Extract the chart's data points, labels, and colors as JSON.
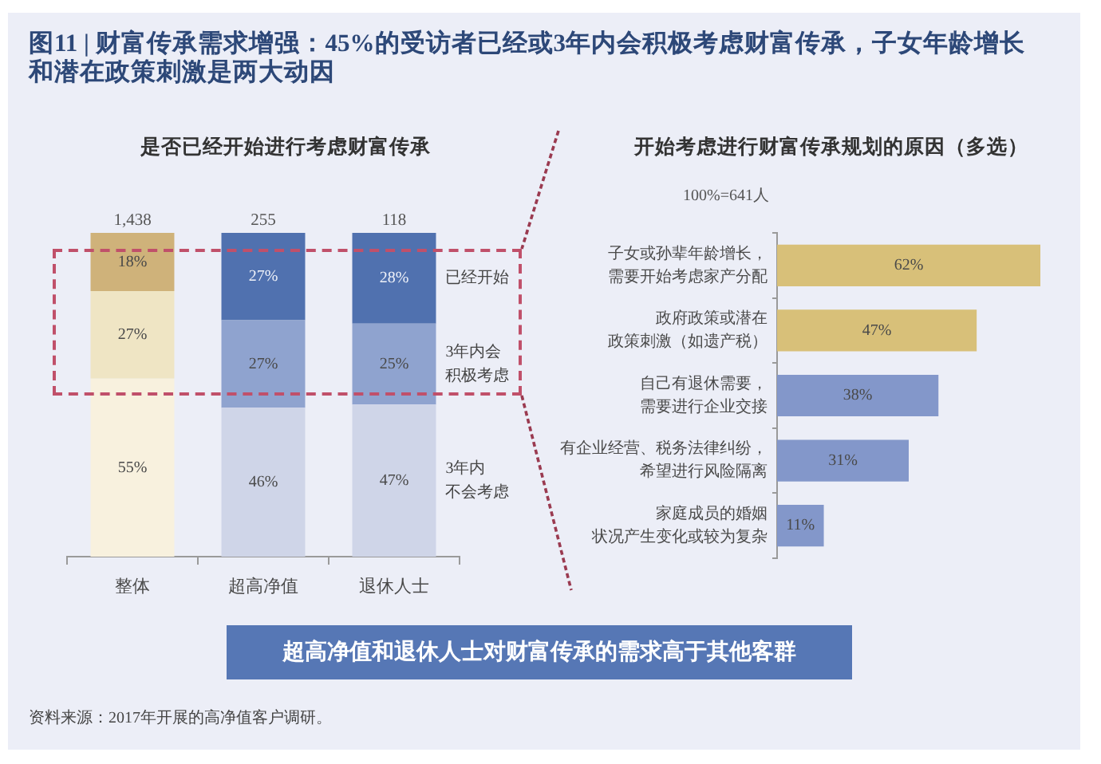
{
  "chart_data": [
    {
      "type": "other",
      "title": "图11 | 财富传承需求增强：45%的受访者已经或3年内会积极考虑财富传承，子女年龄增长和潜在政策刺激是两大动因"
    },
    {
      "type": "bar",
      "title": "是否已经开始进行考虑财富传承",
      "categories": [
        "整体",
        "超高净值",
        "退休人士"
      ],
      "stacked": true,
      "ylim": [
        0,
        100
      ],
      "tick_labels": "x",
      "grid": false,
      "series": [
        {
          "name": "3年内不会考虑",
          "colors": [
            "#f8f1de",
            "#cfd5e8",
            "#cfd5e8"
          ],
          "values": [
            55,
            46,
            47
          ],
          "value_labels": [
            "55%",
            "46%",
            "47%"
          ]
        },
        {
          "name": "3年内会积极考虑",
          "colors": [
            "#efe5c4",
            "#8fa3cf",
            "#8fa3cf"
          ],
          "values": [
            27,
            27,
            25
          ],
          "value_labels": [
            "27%",
            "27%",
            "25%"
          ]
        },
        {
          "name": "已经开始",
          "colors": [
            "#cfb27a",
            "#5071af",
            "#5071af"
          ],
          "values": [
            18,
            27,
            28
          ],
          "value_labels": [
            "18%",
            "27%",
            "28%"
          ]
        }
      ],
      "annotations": [
        {
          "text": "1,438",
          "x": "整体",
          "y": 100
        },
        {
          "text": "255",
          "x": "超高净值",
          "y": 100
        },
        {
          "text": "118",
          "x": "退休人士",
          "y": 100
        }
      ]
    },
    {
      "type": "bar",
      "orientation": "horizontal",
      "title": "开始考虑进行财富传承规划的原因（多选）",
      "subtitle": "100%=641人",
      "categories": [
        "子女或孙辈年龄增长，需要开始考虑家产分配",
        "政府政策或潜在政策刺激（如遗产税）",
        "自己有退休需要，需要进行企业交接",
        "有企业经营、税务法律纠纷，希望进行风险隔离",
        "家庭成员的婚姻状况产生变化或较为复杂"
      ],
      "values": [
        62,
        47,
        38,
        31,
        11
      ],
      "colors": [
        "#d8c079",
        "#d8c079",
        "#8397ca",
        "#8397ca",
        "#8397ca"
      ],
      "value_labels": [
        "62%",
        "47%",
        "38%",
        "31%",
        "11%"
      ],
      "tick_labels": "y",
      "grid": false
    },
    {
      "type": "other",
      "title": "超高净值和退休人士对财富传承的需求高于其他客群",
      "annotations": [
        "资料来源：2017年开展的高净值客户调研。"
      ]
    }
  ]
}
